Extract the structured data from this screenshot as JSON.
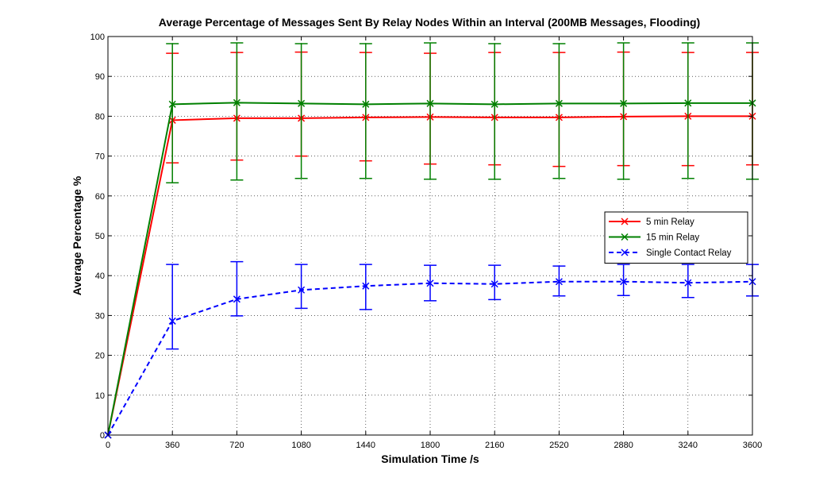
{
  "chart_data": {
    "type": "line",
    "title": "Average Percentage of Messages Sent By Relay Nodes Within an Interval (200MB Messages, Flooding)",
    "xlabel": "Simulation Time /s",
    "ylabel": "Average Percentage %",
    "xlim": [
      0,
      3600
    ],
    "ylim": [
      0,
      100
    ],
    "xticks": [
      0,
      360,
      720,
      1080,
      1440,
      1800,
      2160,
      2520,
      2880,
      3240,
      3600
    ],
    "yticks": [
      0,
      10,
      20,
      30,
      40,
      50,
      60,
      70,
      80,
      90,
      100
    ],
    "grid": true,
    "legend_position": "center-right",
    "x": [
      0,
      360,
      720,
      1080,
      1440,
      1800,
      2160,
      2520,
      2880,
      3240,
      3600
    ],
    "series": [
      {
        "name": "5 min Relay",
        "color": "#ff0000",
        "line_style": "solid",
        "marker": "x",
        "values": [
          0,
          79,
          79.5,
          79.5,
          79.7,
          79.8,
          79.7,
          79.7,
          79.9,
          80,
          80
        ],
        "err_low": [
          null,
          68.3,
          69,
          70,
          68.8,
          68,
          67.8,
          67.4,
          67.6,
          67.6,
          67.8
        ],
        "err_high": [
          null,
          95.8,
          96,
          96.1,
          96,
          95.8,
          96,
          96,
          96.1,
          96,
          96
        ]
      },
      {
        "name": "15 min Relay",
        "color": "#008000",
        "line_style": "solid",
        "marker": "x",
        "values": [
          0,
          83,
          83.4,
          83.2,
          83,
          83.2,
          83,
          83.2,
          83.2,
          83.3,
          83.3
        ],
        "err_low": [
          null,
          63.3,
          64,
          64.4,
          64.4,
          64.2,
          64.2,
          64.4,
          64.2,
          64.4,
          64.2
        ],
        "err_high": [
          null,
          98.2,
          98.4,
          98.2,
          98.2,
          98.4,
          98.2,
          98.2,
          98.4,
          98.4,
          98.4
        ]
      },
      {
        "name": "Single Contact Relay",
        "color": "#0000ff",
        "line_style": "dashed",
        "marker": "x",
        "values": [
          0,
          28.6,
          34.1,
          36.4,
          37.4,
          38.1,
          37.9,
          38.5,
          38.5,
          38.2,
          38.5
        ],
        "err_low": [
          null,
          21.6,
          29.9,
          31.8,
          31.5,
          33.7,
          34,
          34.9,
          35,
          34.5,
          34.9
        ],
        "err_high": [
          null,
          42.8,
          43.5,
          42.8,
          42.8,
          42.6,
          42.6,
          42.4,
          42.8,
          42.8,
          42.8
        ]
      }
    ]
  }
}
